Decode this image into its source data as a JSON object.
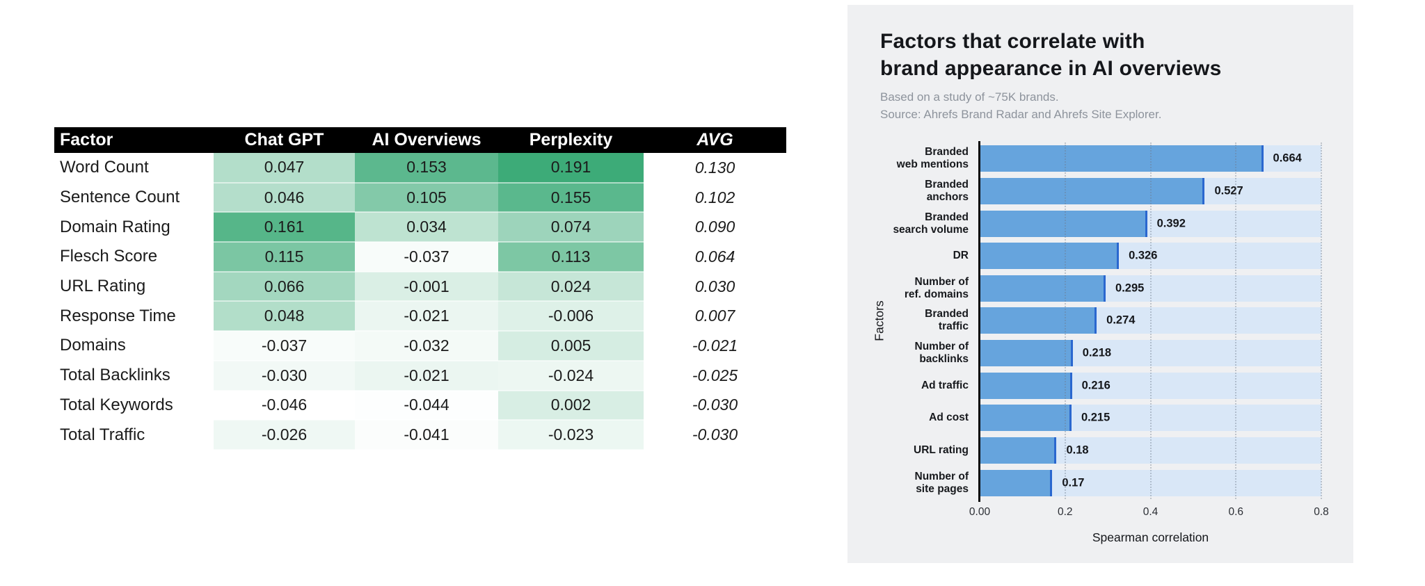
{
  "style": {
    "panel_bg": "#eff0f2",
    "bar_fill": "#66a4dd",
    "bar_cap": "#2a67cf",
    "bar_track": "#d9e7f7",
    "grid_color": "rgba(110,122,138,0.38)",
    "table_header_bg": "#000000",
    "table_header_text": "#ffffff",
    "heat_min_color": "#ffffff",
    "heat_max_color": "#3dab78",
    "title_color": "#15171b",
    "subtitle_color": "#8d939c"
  },
  "chart_data": [
    {
      "type": "table",
      "title": "",
      "columns": [
        "Factor",
        "Chat GPT",
        "AI Overviews",
        "Perplexity",
        "AVG"
      ],
      "rows": [
        {
          "factor": "Word Count",
          "chat_gpt": "0.047",
          "ai_overviews": "0.153",
          "perplexity": "0.191",
          "avg": "0.130"
        },
        {
          "factor": "Sentence Count",
          "chat_gpt": "0.046",
          "ai_overviews": "0.105",
          "perplexity": "0.155",
          "avg": "0.102"
        },
        {
          "factor": "Domain Rating",
          "chat_gpt": "0.161",
          "ai_overviews": "0.034",
          "perplexity": "0.074",
          "avg": "0.090"
        },
        {
          "factor": "Flesch Score",
          "chat_gpt": "0.115",
          "ai_overviews": "-0.037",
          "perplexity": "0.113",
          "avg": "0.064"
        },
        {
          "factor": "URL Rating",
          "chat_gpt": "0.066",
          "ai_overviews": "-0.001",
          "perplexity": "0.024",
          "avg": "0.030"
        },
        {
          "factor": "Response Time",
          "chat_gpt": "0.048",
          "ai_overviews": "-0.021",
          "perplexity": "-0.006",
          "avg": "0.007"
        },
        {
          "factor": "Domains",
          "chat_gpt": "-0.037",
          "ai_overviews": "-0.032",
          "perplexity": "0.005",
          "avg": "-0.021"
        },
        {
          "factor": "Total Backlinks",
          "chat_gpt": "-0.030",
          "ai_overviews": "-0.021",
          "perplexity": "-0.024",
          "avg": "-0.025"
        },
        {
          "factor": "Total Keywords",
          "chat_gpt": "-0.046",
          "ai_overviews": "-0.044",
          "perplexity": "0.002",
          "avg": "-0.030"
        },
        {
          "factor": "Total Traffic",
          "chat_gpt": "-0.026",
          "ai_overviews": "-0.041",
          "perplexity": "-0.023",
          "avg": "-0.030"
        }
      ],
      "heatmap": {
        "min": -0.046,
        "max": 0.191,
        "min_color": "#ffffff",
        "max_color": "#3dab78",
        "applies_to": [
          "chat_gpt",
          "ai_overviews",
          "perplexity"
        ]
      }
    },
    {
      "type": "bar",
      "orientation": "horizontal",
      "title": "Factors that correlate with brand appearance in AI overviews",
      "title_lines": [
        "Factors that correlate with",
        "brand appearance in AI overviews"
      ],
      "subtitle_lines": [
        "Based on a study of ~75K brands.",
        "Source: Ahrefs Brand Radar and Ahrefs Site Explorer."
      ],
      "categories": [
        "Branded web mentions",
        "Branded anchors",
        "Branded search volume",
        "DR",
        "Number of ref. domains",
        "Branded traffic",
        "Number of backlinks",
        "Ad traffic",
        "Ad cost",
        "URL rating",
        "Number of site pages"
      ],
      "category_lines": [
        [
          "Branded",
          "web mentions"
        ],
        [
          "Branded",
          "anchors"
        ],
        [
          "Branded",
          "search volume"
        ],
        [
          "DR"
        ],
        [
          "Number of",
          "ref. domains"
        ],
        [
          "Branded",
          "traffic"
        ],
        [
          "Number of",
          "backlinks"
        ],
        [
          "Ad traffic"
        ],
        [
          "Ad cost"
        ],
        [
          "URL rating"
        ],
        [
          "Number of",
          "site pages"
        ]
      ],
      "values": [
        0.664,
        0.527,
        0.392,
        0.326,
        0.295,
        0.274,
        0.218,
        0.216,
        0.215,
        0.18,
        0.17
      ],
      "value_labels": [
        "0.664",
        "0.527",
        "0.392",
        "0.326",
        "0.295",
        "0.274",
        "0.218",
        "0.216",
        "0.215",
        "0.18",
        "0.17"
      ],
      "xlabel": "Spearman correlation",
      "ylabel": "Factors",
      "xlim": [
        0,
        0.8
      ],
      "x_ticks": [
        0,
        0.2,
        0.4,
        0.6,
        0.8
      ],
      "x_tick_labels": [
        "0.00",
        "0.2",
        "0.4",
        "0.6",
        "0.8"
      ],
      "grid": "vertical-dotted",
      "legend": null
    }
  ]
}
